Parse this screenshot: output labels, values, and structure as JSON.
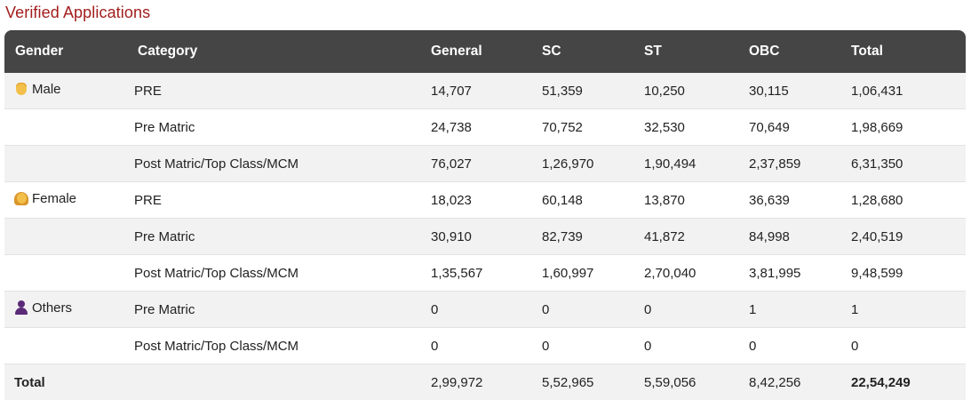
{
  "page_title": "Verified Applications",
  "columns": {
    "gender": "Gender",
    "category": "Category",
    "general": "General",
    "sc": "SC",
    "st": "ST",
    "obc": "OBC",
    "total": "Total"
  },
  "rows": [
    {
      "gender": "Male",
      "icon": "male-person-icon",
      "category": "PRE",
      "general": "14,707",
      "sc": "51,359",
      "st": "10,250",
      "obc": "30,115",
      "total": "1,06,431"
    },
    {
      "gender": "",
      "category": "Pre Matric",
      "general": "24,738",
      "sc": "70,752",
      "st": "32,530",
      "obc": "70,649",
      "total": "1,98,669"
    },
    {
      "gender": "",
      "category": "Post Matric/Top Class/MCM",
      "general": "76,027",
      "sc": "1,26,970",
      "st": "1,90,494",
      "obc": "2,37,859",
      "total": "6,31,350"
    },
    {
      "gender": "Female",
      "icon": "female-person-icon",
      "category": "PRE",
      "general": "18,023",
      "sc": "60,148",
      "st": "13,870",
      "obc": "36,639",
      "total": "1,28,680"
    },
    {
      "gender": "",
      "category": "Pre Matric",
      "general": "30,910",
      "sc": "82,739",
      "st": "41,872",
      "obc": "84,998",
      "total": "2,40,519"
    },
    {
      "gender": "",
      "category": "Post Matric/Top Class/MCM",
      "general": "1,35,567",
      "sc": "1,60,997",
      "st": "2,70,040",
      "obc": "3,81,995",
      "total": "9,48,599"
    },
    {
      "gender": "Others",
      "icon": "other-person-icon",
      "category": "Pre Matric",
      "general": "0",
      "sc": "0",
      "st": "0",
      "obc": "1",
      "total": "1"
    },
    {
      "gender": "",
      "category": "Post Matric/Top Class/MCM",
      "general": "0",
      "sc": "0",
      "st": "0",
      "obc": "0",
      "total": "0"
    }
  ],
  "total_row": {
    "label": "Total",
    "general": "2,99,972",
    "sc": "5,52,965",
    "st": "5,59,056",
    "obc": "8,42,256",
    "total": "22,54,249"
  },
  "colors": {
    "title": "#a31d1d",
    "header_bg": "#454545",
    "stripe": "#f2f2f2"
  }
}
